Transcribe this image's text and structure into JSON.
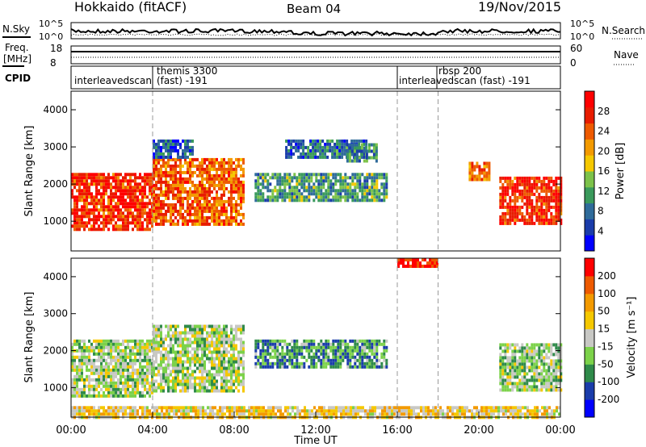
{
  "header": {
    "station": "Hokkaido (fitACF)",
    "beam": "Beam 04",
    "date": "19/Nov/2015"
  },
  "top_panels": {
    "nsky_label": "N.Sky",
    "nsearch_label": "N.Search",
    "noise_ticks_left": [
      "10^5",
      "10^0"
    ],
    "noise_ticks_right": [
      "10^5",
      "10^0"
    ],
    "freq_label_line1": "Freq.",
    "freq_label_line2": "[MHz]",
    "freq_ticks": [
      "18",
      "8"
    ],
    "nave_label": "Nave",
    "nave_ticks": [
      "60",
      "0"
    ],
    "cpid_label": "CPID",
    "cpid_segments": [
      {
        "label": "interleavedscan",
        "extra": ""
      },
      {
        "label": "themis 3300",
        "extra": "(fast) -191"
      },
      {
        "label": "interleavedscan (fast) -191",
        "extra": ""
      },
      {
        "label": "rbsp 200",
        "extra": ""
      }
    ]
  },
  "chart_data": [
    {
      "type": "heatmap",
      "ylabel": "Slant Range [km]",
      "ylim": [
        200,
        4500
      ],
      "y_ticks": [
        "4000",
        "3000",
        "2000",
        "1000"
      ],
      "colorbar_label": "Power [dB]",
      "colorbar_ticks": [
        "28",
        "24",
        "20",
        "16",
        "12",
        "8",
        "4"
      ],
      "colors": [
        "#0000ff",
        "#1a3caa",
        "#2f6b9a",
        "#3a9a5c",
        "#7cc24a",
        "#f5c800",
        "#f39a00",
        "#ee5a00",
        "#e81c00",
        "#ff0000"
      ],
      "regions": [
        {
          "t": [
            0,
            4
          ],
          "r": [
            800,
            2300
          ],
          "level": 0.85
        },
        {
          "t": [
            4,
            8.5
          ],
          "r": [
            900,
            2700
          ],
          "level": 0.75
        },
        {
          "t": [
            4,
            6
          ],
          "r": [
            2700,
            3200
          ],
          "level": 0.2
        },
        {
          "t": [
            9,
            15.5
          ],
          "r": [
            1600,
            2300
          ],
          "level": 0.35
        },
        {
          "t": [
            10.5,
            14.5
          ],
          "r": [
            2700,
            3200
          ],
          "level": 0.25
        },
        {
          "t": [
            13.5,
            15
          ],
          "r": [
            2600,
            3100
          ],
          "level": 0.3
        },
        {
          "t": [
            21,
            24
          ],
          "r": [
            900,
            2200
          ],
          "level": 0.85
        },
        {
          "t": [
            19.5,
            20.5
          ],
          "r": [
            2100,
            2600
          ],
          "level": 0.7
        }
      ]
    },
    {
      "type": "heatmap",
      "ylabel": "Slant Range [km]",
      "xlabel": "Time UT",
      "ylim": [
        200,
        4500
      ],
      "y_ticks": [
        "4000",
        "3000",
        "2000",
        "1000"
      ],
      "x_ticks": [
        "00:00",
        "04:00",
        "08:00",
        "12:00",
        "16:00",
        "20:00",
        "00:00"
      ],
      "colorbar_label": "Velocity [m s⁻¹]",
      "colorbar_ticks": [
        "200",
        "100",
        "50",
        "15",
        "-15",
        "-50",
        "-100",
        "-200"
      ],
      "colors": [
        "#0000ff",
        "#1a3caa",
        "#2f8a4a",
        "#7cd24a",
        "#c8c8c4",
        "#f5c800",
        "#f39a00",
        "#ee5a00",
        "#ff0000"
      ],
      "regions": [
        {
          "t": [
            0,
            4
          ],
          "r": [
            800,
            2300
          ],
          "level": 0.45
        },
        {
          "t": [
            4,
            8.5
          ],
          "r": [
            900,
            2700
          ],
          "level": 0.45
        },
        {
          "t": [
            9,
            15.5
          ],
          "r": [
            1600,
            2300
          ],
          "level": 0.3
        },
        {
          "t": [
            16,
            18
          ],
          "r": [
            4300,
            4500
          ],
          "level": 0.95
        },
        {
          "t": [
            21,
            24
          ],
          "r": [
            900,
            2200
          ],
          "level": 0.42
        },
        {
          "t": [
            0,
            24
          ],
          "r": [
            200,
            500
          ],
          "level": 0.6
        }
      ]
    }
  ],
  "time_axis": {
    "start_hour": 0,
    "end_hour": 24,
    "dashed_hours": [
      4,
      16,
      18
    ]
  }
}
